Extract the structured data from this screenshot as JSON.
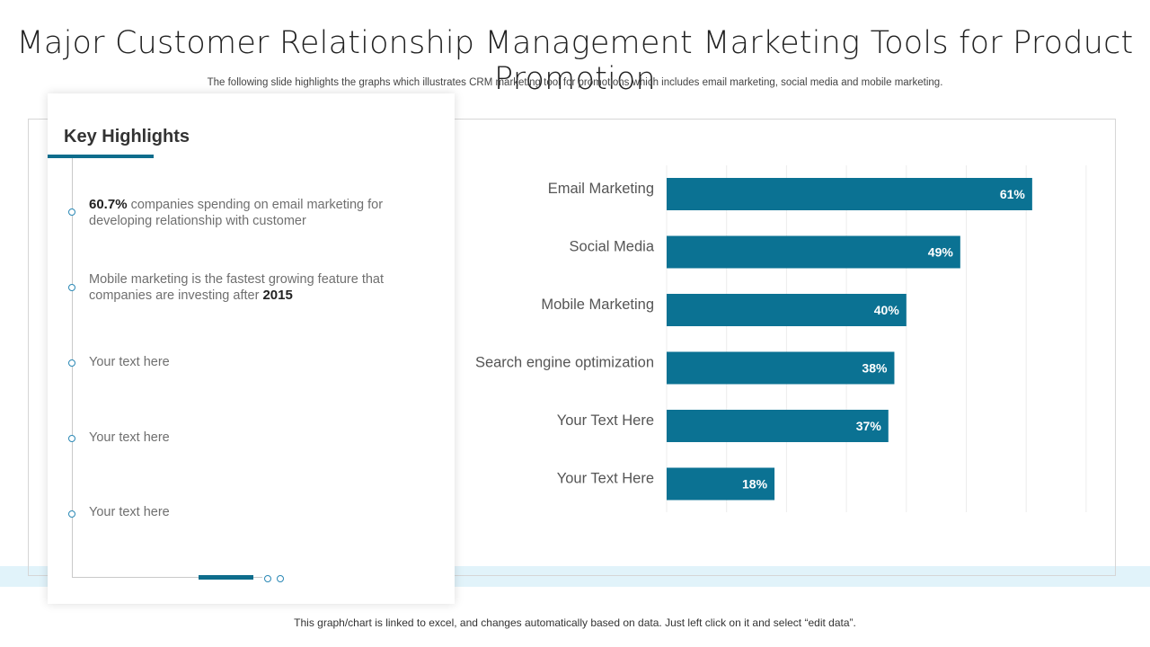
{
  "header": {
    "title": "Major Customer Relationship Management Marketing Tools for Product Promotion",
    "subtitle": "The following slide highlights the graphs which illustrates CRM marketing tool for promotions which includes email marketing, social media and mobile marketing."
  },
  "highlights": {
    "heading": "Key Highlights",
    "item1": {
      "bold": "60.7%",
      "text": " companies spending on email marketing for developing relationship with customer"
    },
    "item2": {
      "text": "Mobile marketing is the fastest growing feature that companies are investing after ",
      "bold": "2015"
    },
    "item3": "Your text here",
    "item4": "Your text here",
    "item5": "Your text here"
  },
  "chart_data": {
    "type": "bar",
    "orientation": "horizontal",
    "categories": [
      "Email Marketing",
      "Social Media",
      "Mobile Marketing",
      "Search engine optimization",
      "Your Text Here",
      "Your Text Here"
    ],
    "values": [
      61,
      49,
      40,
      38,
      37,
      18
    ],
    "value_labels": [
      "61%",
      "49%",
      "40%",
      "38%",
      "37%",
      "18%"
    ],
    "xlim": [
      0,
      70
    ],
    "grid": true,
    "title": "",
    "xlabel": "",
    "ylabel": ""
  },
  "colors": {
    "bar": "#0b7293",
    "accent": "#0e6d8c",
    "band": "#e1f3fa"
  },
  "footer": {
    "note": "This graph/chart is linked to excel, and changes automatically based on data. Just left click on it and select “edit data”."
  }
}
